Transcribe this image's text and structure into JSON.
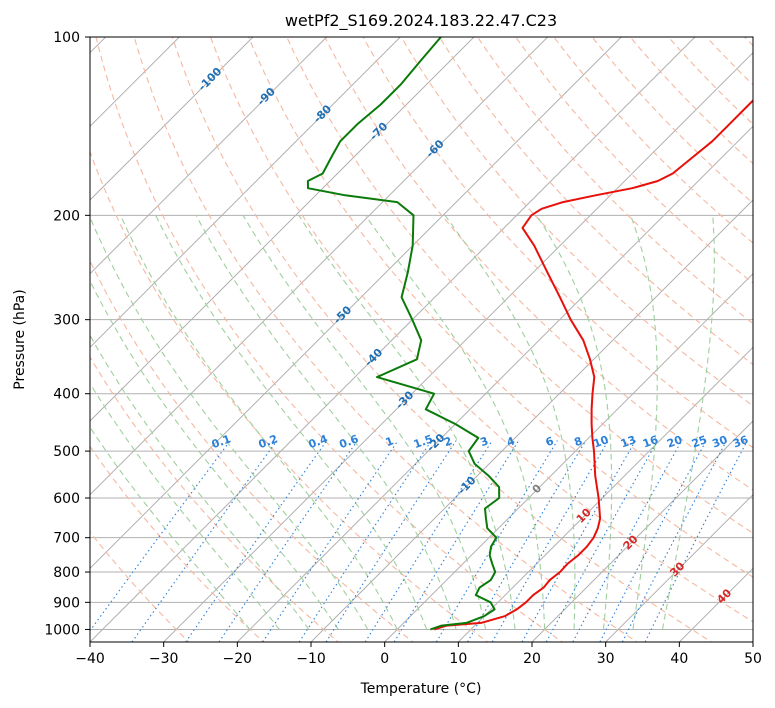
{
  "chart_data": {
    "type": "line",
    "subtype": "skew-t log-p diagram",
    "title": "wetPf2_S169.2024.183.22.47.C23",
    "xlabel": "Temperature (°C)",
    "ylabel": "Pressure (hPa)",
    "xlim": [
      -40,
      50
    ],
    "ylim": [
      1050,
      100
    ],
    "y_scale": "log",
    "grid": true,
    "x_ticks": [
      -40,
      -30,
      -20,
      -10,
      0,
      10,
      20,
      30,
      40,
      50
    ],
    "y_ticks": [
      1000,
      900,
      800,
      700,
      600,
      500,
      400,
      300,
      200,
      100
    ],
    "colors": {
      "temperature": "#e8100a",
      "dewpoint": "#0a7a0a",
      "grid": "#b0b0b0",
      "dry_adiabat": "#f5b8a0",
      "moist_adiabat": "#9fcf9f",
      "mixing_ratio": "#2b80d9",
      "isotherm_label_neg": "#1f6fb5",
      "isotherm_label_pos": "#d62828",
      "isotherm_label_zero": "#808080"
    },
    "series": [
      {
        "key": "temperature",
        "points": [
          [
            1000,
            5.0
          ],
          [
            985,
            6.2
          ],
          [
            975,
            10.5
          ],
          [
            950,
            12.8
          ],
          [
            925,
            13.5
          ],
          [
            900,
            13.8
          ],
          [
            875,
            13.8
          ],
          [
            850,
            14.2
          ],
          [
            825,
            14.0
          ],
          [
            800,
            14.3
          ],
          [
            775,
            14.2
          ],
          [
            750,
            14.5
          ],
          [
            725,
            14.5
          ],
          [
            700,
            14.2
          ],
          [
            675,
            13.5
          ],
          [
            650,
            12.5
          ],
          [
            600,
            9.5
          ],
          [
            550,
            6.0
          ],
          [
            500,
            2.5
          ],
          [
            475,
            0.5
          ],
          [
            450,
            -1.5
          ],
          [
            425,
            -3.5
          ],
          [
            400,
            -5.5
          ],
          [
            375,
            -7.5
          ],
          [
            350,
            -10.5
          ],
          [
            325,
            -14.0
          ],
          [
            300,
            -18.5
          ],
          [
            275,
            -23.0
          ],
          [
            250,
            -28.0
          ],
          [
            225,
            -33.5
          ],
          [
            210,
            -37.5
          ],
          [
            200,
            -38.0
          ],
          [
            195,
            -37.5
          ],
          [
            190,
            -35.5
          ],
          [
            185,
            -32.0
          ],
          [
            180,
            -28.0
          ],
          [
            175,
            -25.5
          ],
          [
            170,
            -24.5
          ],
          [
            160,
            -24.0
          ],
          [
            150,
            -23.5
          ],
          [
            140,
            -23.5
          ],
          [
            130,
            -23.5
          ],
          [
            120,
            -23.5
          ],
          [
            110,
            -23.0
          ],
          [
            100,
            -23.0
          ]
        ]
      },
      {
        "key": "dewpoint",
        "points": [
          [
            1000,
            4.5
          ],
          [
            985,
            5.5
          ],
          [
            975,
            8.5
          ],
          [
            950,
            10.0
          ],
          [
            925,
            10.5
          ],
          [
            900,
            9.0
          ],
          [
            875,
            6.0
          ],
          [
            850,
            5.5
          ],
          [
            825,
            6.0
          ],
          [
            800,
            5.5
          ],
          [
            775,
            4.0
          ],
          [
            750,
            2.5
          ],
          [
            725,
            1.5
          ],
          [
            700,
            1.0
          ],
          [
            675,
            -1.5
          ],
          [
            650,
            -3.0
          ],
          [
            625,
            -4.5
          ],
          [
            600,
            -4.0
          ],
          [
            575,
            -5.5
          ],
          [
            550,
            -8.5
          ],
          [
            525,
            -12.0
          ],
          [
            500,
            -14.5
          ],
          [
            475,
            -15.0
          ],
          [
            450,
            -20.0
          ],
          [
            425,
            -26.0
          ],
          [
            400,
            -27.0
          ],
          [
            375,
            -37.0
          ],
          [
            350,
            -34.0
          ],
          [
            325,
            -36.0
          ],
          [
            300,
            -40.0
          ],
          [
            275,
            -44.5
          ],
          [
            250,
            -47.0
          ],
          [
            225,
            -50.0
          ],
          [
            200,
            -54.0
          ],
          [
            190,
            -58.0
          ],
          [
            185,
            -66.0
          ],
          [
            180,
            -72.0
          ],
          [
            175,
            -73.0
          ],
          [
            170,
            -72.0
          ],
          [
            160,
            -73.0
          ],
          [
            150,
            -74.0
          ],
          [
            140,
            -74.0
          ],
          [
            130,
            -73.5
          ],
          [
            120,
            -73.5
          ],
          [
            110,
            -74.0
          ],
          [
            100,
            -74.5
          ]
        ]
      }
    ],
    "isotherm_labels": [
      "-100",
      "-90",
      "-80",
      "-70",
      "-60",
      "-50",
      "-40",
      "-30",
      "-20",
      "-10",
      "0",
      "10",
      "20",
      "30",
      "40"
    ],
    "mixing_ratio_labels": [
      "0.1",
      "0.2",
      "0.4",
      "0.6",
      "1",
      "1.5",
      "2",
      "3",
      "4",
      "6",
      "8",
      "10",
      "13",
      "16",
      "20",
      "25",
      "30",
      "36"
    ]
  }
}
